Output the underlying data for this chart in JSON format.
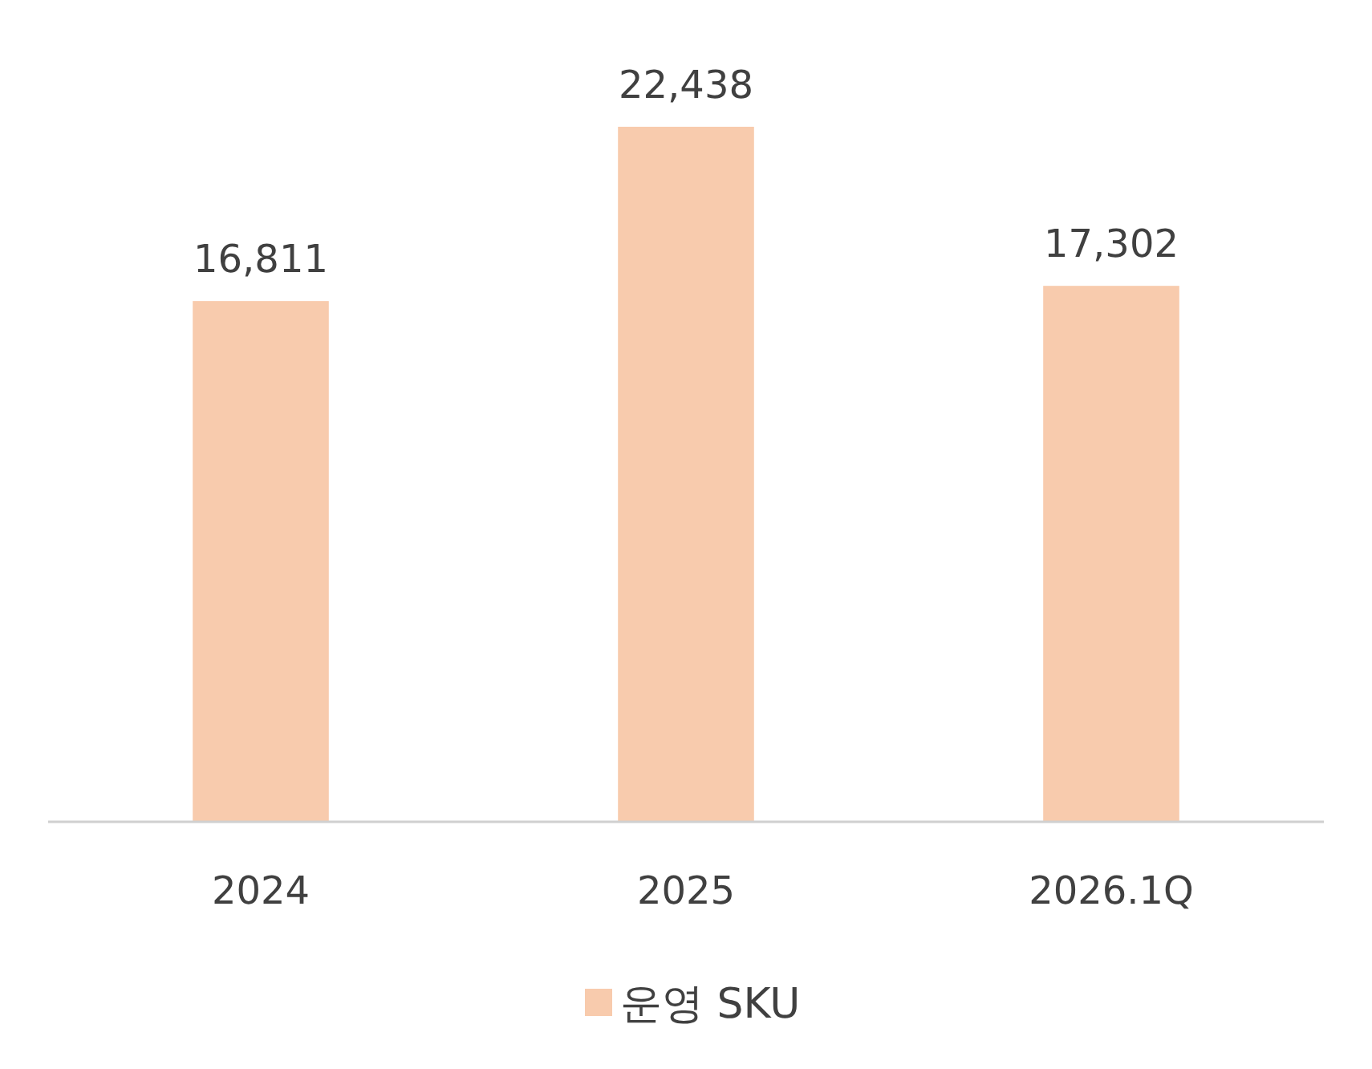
{
  "chart_data": {
    "type": "bar",
    "categories": [
      "2024",
      "2025",
      "2026.1Q"
    ],
    "series": [
      {
        "name": "운영 SKU",
        "color": "#f8cbad",
        "values": [
          16811,
          22438,
          17302
        ],
        "value_labels": [
          "16,811",
          "22,438",
          "17,302"
        ]
      }
    ],
    "legend": "bottom"
  }
}
